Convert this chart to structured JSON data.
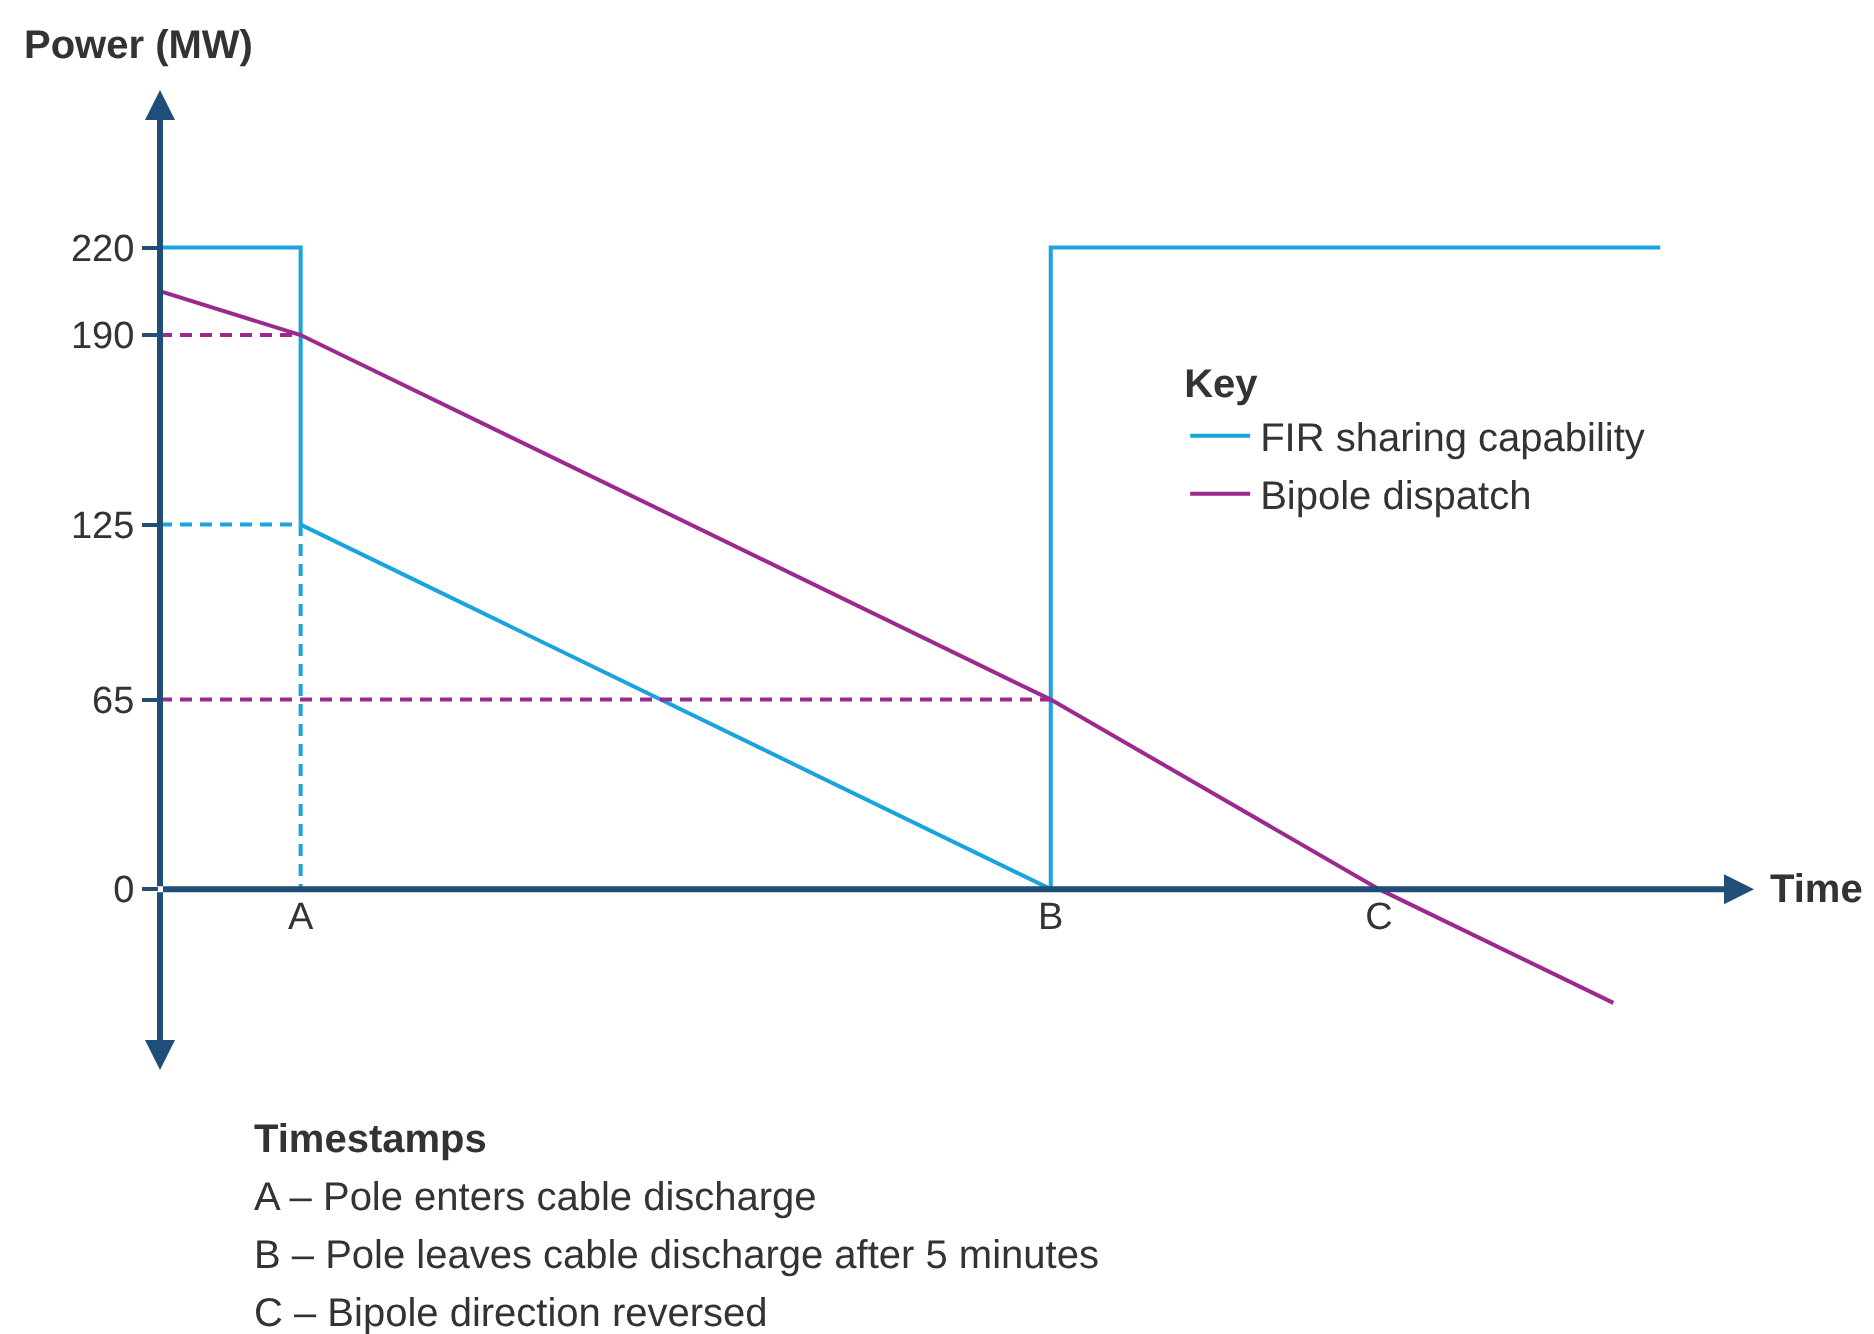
{
  "chart_data": {
    "type": "line",
    "ylabel": "Power (MW)",
    "xlabel": "Time",
    "legend_title": "Key",
    "legend": "top right",
    "marker": "none",
    "categories": [
      null,
      null,
      null,
      "A",
      null,
      null,
      null,
      null,
      null,
      null,
      null,
      null,
      null,
      null,
      null,
      null,
      null,
      null,
      null,
      "B",
      null,
      null,
      null,
      null,
      null,
      null,
      "C",
      null,
      null,
      null,
      null,
      null,
      null,
      null,
      null
    ],
    "ylim": [
      -62,
      274
    ],
    "yticks": [
      0,
      65,
      125,
      190,
      220
    ],
    "series": [
      {
        "name": "FIR sharing capability",
        "type": "step",
        "color": "#1aa3dc",
        "line_style": "solid",
        "values": [
          220,
          null,
          null,
          125,
          null,
          null,
          null,
          null,
          null,
          null,
          null,
          null,
          null,
          null,
          null,
          null,
          null,
          null,
          null,
          null,
          null,
          null,
          null,
          null,
          null,
          null,
          null,
          null,
          null,
          null,
          null,
          null,
          null,
          null,
          null
        ]
      },
      {
        "color": "#1aa3dc",
        "line_style": "solid",
        "values": [
          null,
          null,
          null,
          125,
          null,
          null,
          null,
          null,
          null,
          null,
          null,
          null,
          null,
          null,
          null,
          null,
          null,
          null,
          null,
          0,
          null,
          null,
          null,
          null,
          null,
          null,
          null,
          null,
          null,
          null,
          null,
          null,
          null,
          null,
          null
        ]
      },
      {
        "type": "step",
        "color": "#1aa3dc",
        "line_style": "solid",
        "values": [
          null,
          null,
          null,
          null,
          null,
          null,
          null,
          null,
          null,
          null,
          null,
          null,
          null,
          null,
          null,
          null,
          null,
          null,
          0,
          220,
          null,
          null,
          null,
          null,
          null,
          null,
          null,
          null,
          null,
          null,
          null,
          null,
          220,
          null,
          null
        ]
      },
      {
        "name": "Bipole dispatch",
        "color": "#9c2a8e",
        "line_style": "solid",
        "values": [
          205,
          null,
          null,
          190,
          null,
          null,
          null,
          null,
          null,
          null,
          null,
          null,
          null,
          null,
          null,
          null,
          null,
          null,
          null,
          65,
          null,
          null,
          null,
          null,
          null,
          null,
          0,
          null,
          null,
          null,
          null,
          -39,
          null,
          null,
          null
        ]
      },
      {
        "type": "step",
        "color": "#1aa3dc",
        "line_style": "dashed",
        "values": [
          125,
          null,
          null,
          0,
          null,
          null,
          null,
          null,
          null,
          null,
          null,
          null,
          null,
          null,
          null,
          null,
          null,
          null,
          null,
          null,
          null,
          null,
          null,
          null,
          null,
          null,
          null,
          null,
          null,
          null,
          null,
          null,
          null,
          null,
          null
        ]
      },
      {
        "color": "#9c2a8e",
        "line_style": "dashed",
        "values": [
          190,
          null,
          null,
          190,
          null,
          null,
          null,
          null,
          null,
          null,
          null,
          null,
          null,
          null,
          null,
          null,
          null,
          null,
          null,
          null,
          null,
          null,
          null,
          null,
          null,
          null,
          null,
          null,
          null,
          null,
          null,
          null,
          null,
          null,
          null
        ]
      },
      {
        "color": "#9c2a8e",
        "line_style": "dashed",
        "values": [
          65,
          null,
          null,
          null,
          null,
          null,
          null,
          null,
          null,
          null,
          null,
          null,
          null,
          null,
          null,
          null,
          null,
          null,
          null,
          65,
          null,
          null,
          null,
          null,
          null,
          null,
          null,
          null,
          null,
          null,
          null,
          null,
          null,
          null,
          null
        ]
      }
    ],
    "annotations": [
      "Timestamps",
      "A – Pole enters cable discharge",
      "B – Pole leaves cable discharge after 5 minutes",
      "C – Bipole direction reversed"
    ]
  }
}
